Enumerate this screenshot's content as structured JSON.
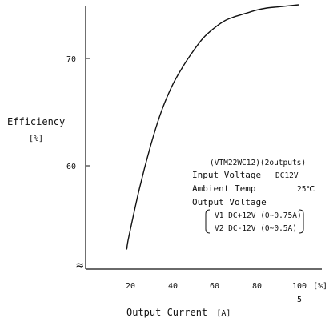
{
  "chart_data": {
    "type": "line",
    "x": [
      19,
      20,
      25,
      30,
      35,
      40,
      45,
      50,
      55,
      60,
      65,
      70,
      75,
      80,
      85,
      90,
      95,
      100
    ],
    "series": [
      {
        "values": [
          52.2,
          53.4,
          57.9,
          61.7,
          64.9,
          67.3,
          69.1,
          70.6,
          71.9,
          72.8,
          73.5,
          73.9,
          74.2,
          74.5,
          74.7,
          74.8,
          74.9,
          75.0
        ]
      }
    ],
    "xlabel": "Output Current",
    "xunit": "[A]",
    "ylabel": "Efficiency",
    "yunit": "[%]",
    "x_ticks": [
      "20",
      "40",
      "60",
      "80",
      "100"
    ],
    "x_unit_tick": "[%]",
    "x_sub_tick": "5",
    "y_ticks": [
      "60",
      "70"
    ],
    "xlim": [
      0,
      110
    ],
    "ylim": [
      50,
      76
    ],
    "axis_break": "≈",
    "grid": false,
    "annotation": {
      "model": "(VTM22WC12)(2outputs)",
      "input_voltage_label": "Input Voltage",
      "input_voltage_value": "DC12V",
      "ambient_label": "Ambient Temp",
      "ambient_value": "25℃",
      "output_voltage_label": "Output Voltage",
      "v1": "V1 DC+12V (0~0.75A)",
      "v2": "V2 DC-12V (0~0.5A)"
    }
  }
}
